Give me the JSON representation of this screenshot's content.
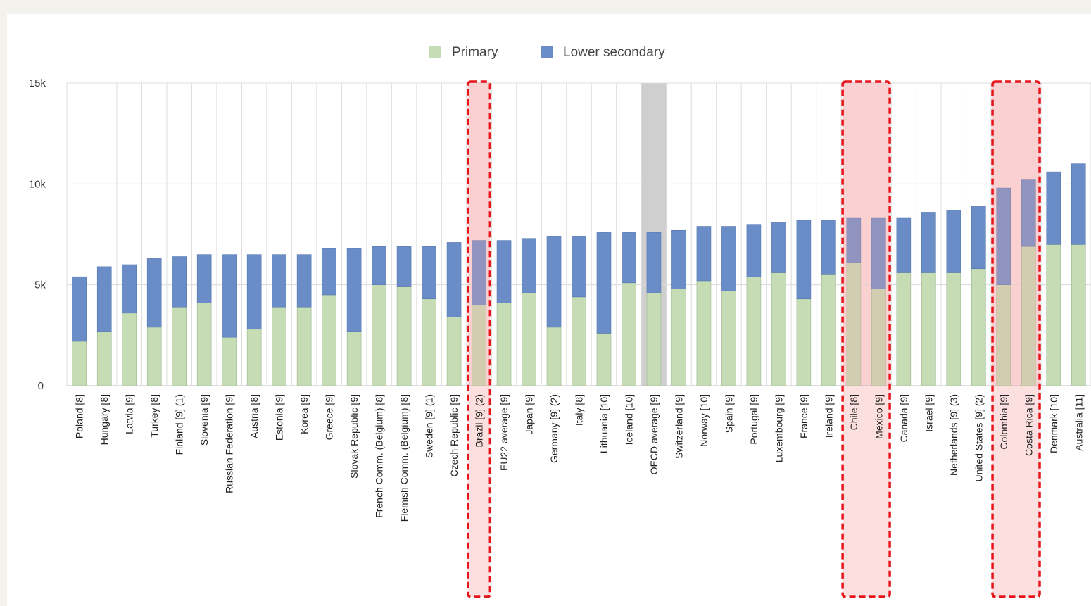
{
  "chart_data": {
    "type": "bar",
    "stacked": true,
    "legend_position": "top-center",
    "grid": true,
    "ylim": [
      0,
      15000
    ],
    "yticks": [
      {
        "value": 0,
        "label": "0"
      },
      {
        "value": 5000,
        "label": "5k"
      },
      {
        "value": 10000,
        "label": "10k"
      },
      {
        "value": 15000,
        "label": "15k"
      }
    ],
    "categories": [
      "Poland [8]",
      "Hungary [8]",
      "Latvia [9]",
      "Turkey [8]",
      "Finland [9] (1)",
      "Slovenia [9]",
      "Russian Federation [9]",
      "Austria [8]",
      "Estonia [9]",
      "Korea [9]",
      "Greece [9]",
      "Slovak Republic [9]",
      "French Comm. (Belgium) [8]",
      "Flemish Comm. (Belgium) [8]",
      "Sweden [9] (1)",
      "Czech Republic [9]",
      "Brazil [9] (2)",
      "EU22 average [9]",
      "Japan [9]",
      "Germany [9] (2)",
      "Italy [8]",
      "Lithuania [10]",
      "Iceland [10]",
      "OECD average [9]",
      "Switzerland [9]",
      "Norway [10]",
      "Spain [9]",
      "Portugal [9]",
      "Luxembourg [9]",
      "France [9]",
      "Ireland [9]",
      "Chile [8]",
      "Mexico [9]",
      "Canada [9]",
      "Israel [9]",
      "Netherlands [9] (3)",
      "United States [9] (2)",
      "Colombia [9]",
      "Costa Rica [9]",
      "Denmark [10]",
      "Australia [11]"
    ],
    "series": [
      {
        "name": "Primary",
        "color": "#c5dcb5",
        "values": [
          2200,
          2700,
          3600,
          2900,
          3900,
          4100,
          2400,
          2800,
          3900,
          3900,
          4500,
          2700,
          5000,
          4900,
          4300,
          3400,
          4000,
          4100,
          4600,
          2900,
          4400,
          2600,
          5100,
          4600,
          4800,
          5200,
          4700,
          5400,
          5600,
          4300,
          5500,
          6100,
          4800,
          5600,
          5600,
          5600,
          5800,
          5000,
          6900,
          7000,
          7000
        ]
      },
      {
        "name": "Lower secondary",
        "color": "#6a8dc8",
        "values": [
          3200,
          3200,
          2400,
          3400,
          2500,
          2400,
          4100,
          3700,
          2600,
          2600,
          2300,
          4100,
          1900,
          2000,
          2600,
          3700,
          3200,
          3100,
          2700,
          4500,
          3000,
          5000,
          2500,
          3000,
          2900,
          2700,
          3200,
          2600,
          2500,
          3900,
          2700,
          2200,
          3500,
          2700,
          3000,
          3100,
          3100,
          4800,
          3300,
          3600,
          4000
        ]
      }
    ],
    "highlighted_average": "OECD average [9]",
    "highlighted_groups": [
      [
        "Brazil [9] (2)"
      ],
      [
        "Chile [8]",
        "Mexico [9]"
      ],
      [
        "Colombia [9]",
        "Costa Rica [9]"
      ]
    ]
  }
}
